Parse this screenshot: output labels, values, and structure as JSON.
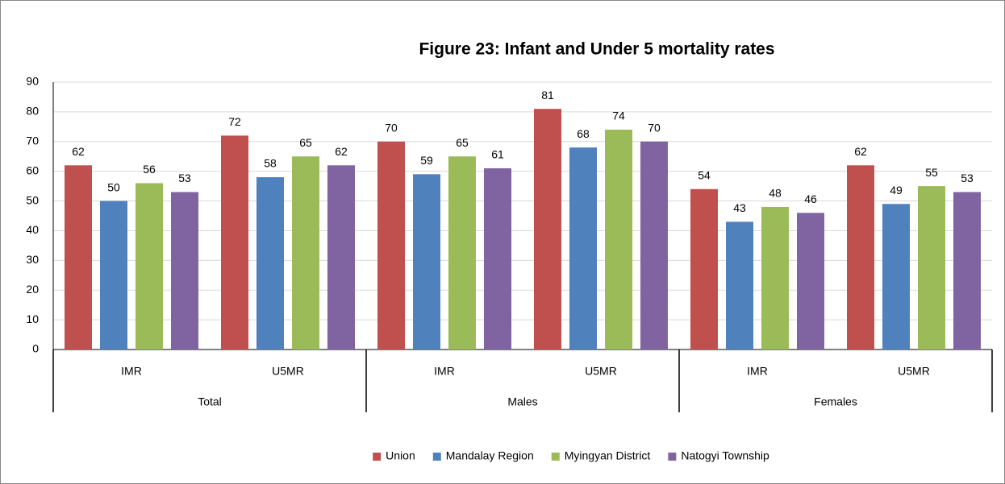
{
  "chart_data": {
    "type": "bar",
    "title": "Figure 23: Infant and Under 5 mortality rates",
    "categories": [
      "IMR",
      "U5MR",
      "IMR",
      "U5MR",
      "IMR",
      "U5MR"
    ],
    "category_groups": [
      "Total",
      "Males",
      "Females"
    ],
    "series": [
      {
        "name": "Union",
        "color": "#c0504d",
        "values": [
          62,
          72,
          70,
          81,
          54,
          62
        ]
      },
      {
        "name": "Mandalay Region",
        "color": "#4f81bd",
        "values": [
          50,
          58,
          59,
          68,
          43,
          49
        ]
      },
      {
        "name": "Myingyan District",
        "color": "#9bbb59",
        "values": [
          56,
          65,
          65,
          74,
          48,
          55
        ]
      },
      {
        "name": "Natogyi Township",
        "color": "#8064a2",
        "values": [
          53,
          62,
          61,
          70,
          46,
          53
        ]
      }
    ],
    "ylim": [
      0,
      90
    ],
    "yticks": [
      0,
      10,
      20,
      30,
      40,
      50,
      60,
      70,
      80,
      90
    ],
    "grid": true,
    "legend": "bottom"
  }
}
